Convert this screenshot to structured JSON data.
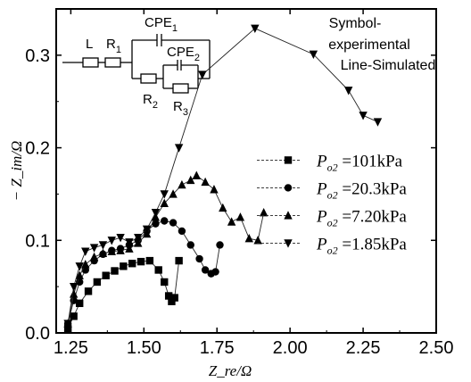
{
  "chart_data": {
    "type": "scatter",
    "xlabel": "Z_re/Ω",
    "ylabel": "− Z_im/Ω",
    "xlim": [
      1.2,
      2.5
    ],
    "ylim": [
      0.0,
      0.35
    ],
    "xticks": [
      "1.25",
      "1.50",
      "1.75",
      "2.00",
      "2.25",
      "2.50"
    ],
    "yticks": [
      "0.0",
      "0.1",
      "0.2",
      "0.3"
    ],
    "note_lines": [
      "Symbol-",
      "experimental",
      "Line-Simulated"
    ],
    "circuit_labels": {
      "L": "L",
      "R1": "R",
      "R1_sub": "1",
      "CPE1": "CPE",
      "CPE1_sub": "1",
      "CPE2": "CPE",
      "CPE2_sub": "2",
      "R2": "R",
      "R2_sub": "2",
      "R3": "R",
      "R3_sub": "3"
    },
    "legend_placement": "right",
    "series": [
      {
        "name": "P_o2 =101kPa",
        "marker": "square",
        "legend_sub": "o2",
        "legend_main": "P",
        "legend_value": "=101kPa",
        "x": [
          1.24,
          1.26,
          1.28,
          1.31,
          1.34,
          1.37,
          1.4,
          1.43,
          1.46,
          1.49,
          1.52,
          1.55,
          1.57,
          1.585,
          1.595,
          1.605,
          1.62
        ],
        "y": [
          0.005,
          0.018,
          0.032,
          0.045,
          0.055,
          0.062,
          0.067,
          0.072,
          0.075,
          0.077,
          0.078,
          0.068,
          0.055,
          0.04,
          0.034,
          0.038,
          0.078
        ]
      },
      {
        "name": "P_o2 =20.3kPa",
        "marker": "circle",
        "legend_sub": "o2",
        "legend_main": "P",
        "legend_value": "=20.3kPa",
        "x": [
          1.24,
          1.26,
          1.28,
          1.3,
          1.33,
          1.36,
          1.39,
          1.42,
          1.45,
          1.48,
          1.51,
          1.54,
          1.57,
          1.6,
          1.63,
          1.66,
          1.69,
          1.71,
          1.73,
          1.745,
          1.76
        ],
        "y": [
          0.01,
          0.035,
          0.055,
          0.068,
          0.078,
          0.085,
          0.089,
          0.091,
          0.095,
          0.1,
          0.11,
          0.118,
          0.121,
          0.119,
          0.11,
          0.095,
          0.08,
          0.068,
          0.064,
          0.066,
          0.095
        ]
      },
      {
        "name": "P_o2 =7.20kPa",
        "marker": "triangle-up",
        "legend_sub": "o2",
        "legend_main": "P",
        "legend_value": "=7.20kPa",
        "x": [
          1.24,
          1.26,
          1.28,
          1.3,
          1.33,
          1.36,
          1.39,
          1.42,
          1.45,
          1.48,
          1.51,
          1.54,
          1.57,
          1.6,
          1.63,
          1.66,
          1.68,
          1.71,
          1.74,
          1.77,
          1.8,
          1.83,
          1.86,
          1.89,
          1.91
        ],
        "y": [
          0.01,
          0.042,
          0.062,
          0.074,
          0.082,
          0.086,
          0.088,
          0.089,
          0.091,
          0.097,
          0.107,
          0.125,
          0.14,
          0.15,
          0.16,
          0.165,
          0.17,
          0.163,
          0.155,
          0.135,
          0.12,
          0.125,
          0.102,
          0.1,
          0.13
        ]
      },
      {
        "name": "P_o2 =1.85kPa",
        "marker": "triangle-down",
        "legend_sub": "o2",
        "legend_main": "P",
        "legend_value": "=1.85kPa",
        "x": [
          1.24,
          1.26,
          1.28,
          1.3,
          1.33,
          1.36,
          1.39,
          1.42,
          1.45,
          1.48,
          1.51,
          1.54,
          1.57,
          1.62,
          1.7,
          1.88,
          2.08,
          2.2,
          2.25,
          2.3
        ],
        "y": [
          0.01,
          0.05,
          0.072,
          0.088,
          0.092,
          0.095,
          0.1,
          0.103,
          0.098,
          0.103,
          0.112,
          0.13,
          0.15,
          0.2,
          0.279,
          0.329,
          0.301,
          0.262,
          0.235,
          0.228
        ]
      }
    ]
  }
}
